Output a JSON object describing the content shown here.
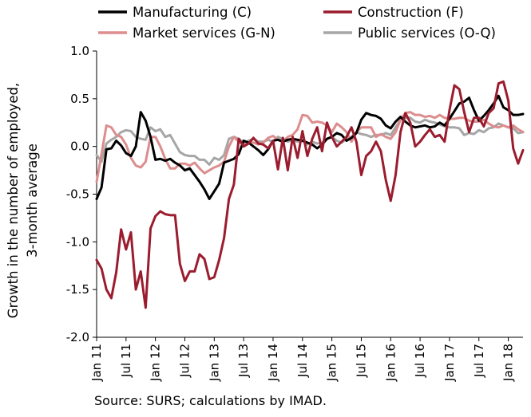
{
  "chart_data": {
    "type": "line",
    "ylabel": [
      "Growth in the number of employed,",
      "3-month average"
    ],
    "xlabel": "",
    "ylim": [
      -2.0,
      1.0
    ],
    "yticks": [
      1.0,
      0.5,
      0.0,
      -0.5,
      -1.0,
      -1.5,
      -2.0
    ],
    "ytick_labels": [
      "1.0",
      "0.5",
      "0.0",
      "-0.5",
      "-1.0",
      "-1.5",
      "-2.0"
    ],
    "x_start": "Jan 11",
    "x_end": "Jul 18",
    "xticks": [
      {
        "label": "Jan 11",
        "month": 0
      },
      {
        "label": "Jul 11",
        "month": 6
      },
      {
        "label": "Jan 12",
        "month": 12
      },
      {
        "label": "Jul 12",
        "month": 18
      },
      {
        "label": "Jan 13",
        "month": 24
      },
      {
        "label": "Jul 13",
        "month": 30
      },
      {
        "label": "Jan 14",
        "month": 36
      },
      {
        "label": "Jul 14",
        "month": 42
      },
      {
        "label": "Jan 15",
        "month": 48
      },
      {
        "label": "Jul 15",
        "month": 54
      },
      {
        "label": "Jan 16",
        "month": 60
      },
      {
        "label": "Jul 16",
        "month": 66
      },
      {
        "label": "Jan 17",
        "month": 72
      },
      {
        "label": "Jul 17",
        "month": 78
      },
      {
        "label": "Jan 18",
        "month": 84
      }
    ],
    "legend_placement": "top",
    "grid": false,
    "series": [
      {
        "name": "Manufacturing (C)",
        "color": "#000000",
        "values": [
          -0.55,
          -0.43,
          -0.03,
          -0.02,
          0.06,
          0.01,
          -0.07,
          -0.1,
          0.0,
          0.36,
          0.27,
          0.1,
          -0.14,
          -0.13,
          -0.15,
          -0.13,
          -0.17,
          -0.2,
          -0.25,
          -0.23,
          -0.3,
          -0.37,
          -0.45,
          -0.55,
          -0.47,
          -0.39,
          -0.17,
          -0.15,
          -0.13,
          -0.08,
          0.06,
          0.04,
          0.0,
          -0.04,
          -0.09,
          -0.03,
          0.06,
          0.07,
          0.05,
          0.07,
          0.08,
          0.07,
          0.06,
          0.04,
          0.02,
          -0.02,
          0.02,
          0.08,
          0.1,
          0.14,
          0.12,
          0.06,
          0.09,
          0.14,
          0.28,
          0.35,
          0.33,
          0.32,
          0.29,
          0.22,
          0.19,
          0.26,
          0.31,
          0.26,
          0.22,
          0.2,
          0.21,
          0.22,
          0.2,
          0.21,
          0.25,
          0.22,
          0.29,
          0.37,
          0.45,
          0.47,
          0.51,
          0.38,
          0.27,
          0.32,
          0.38,
          0.45,
          0.53,
          0.41,
          0.38,
          0.33,
          0.33,
          0.34
        ]
      },
      {
        "name": "Construction (F)",
        "color": "#9b1c2e",
        "values": [
          -1.19,
          -1.28,
          -1.5,
          -1.59,
          -1.32,
          -0.87,
          -1.08,
          -0.9,
          -1.5,
          -1.31,
          -1.69,
          -0.86,
          -0.73,
          -0.68,
          -0.71,
          -0.72,
          -0.72,
          -1.23,
          -1.41,
          -1.31,
          -1.31,
          -1.13,
          -1.18,
          -1.39,
          -1.37,
          -1.19,
          -0.96,
          -0.55,
          -0.4,
          0.08,
          0.0,
          0.03,
          0.09,
          0.03,
          0.02,
          -0.02,
          0.06,
          -0.24,
          0.09,
          -0.25,
          0.1,
          -0.12,
          0.16,
          -0.1,
          0.08,
          0.2,
          -0.05,
          0.25,
          0.1,
          0.0,
          0.05,
          0.1,
          0.2,
          0.05,
          -0.3,
          -0.1,
          -0.05,
          0.05,
          -0.05,
          -0.35,
          -0.57,
          -0.3,
          0.15,
          0.35,
          0.25,
          0.0,
          0.05,
          0.12,
          0.18,
          0.1,
          0.12,
          0.05,
          0.38,
          0.64,
          0.6,
          0.36,
          0.15,
          0.3,
          0.3,
          0.21,
          0.35,
          0.4,
          0.66,
          0.68,
          0.48,
          -0.02,
          -0.18,
          -0.04
        ]
      },
      {
        "name": "Market services (G-N)",
        "color": "#dd8d8d",
        "values": [
          -0.37,
          -0.08,
          0.22,
          0.2,
          0.12,
          0.1,
          0.02,
          -0.12,
          -0.2,
          -0.22,
          -0.16,
          0.1,
          0.1,
          0.0,
          -0.13,
          -0.23,
          -0.23,
          -0.18,
          -0.18,
          -0.2,
          -0.17,
          -0.23,
          -0.28,
          -0.25,
          -0.22,
          -0.2,
          -0.16,
          0.0,
          0.1,
          0.05,
          0.02,
          0.04,
          0.04,
          0.02,
          0.04,
          0.09,
          0.11,
          0.07,
          0.05,
          0.1,
          0.12,
          0.18,
          0.33,
          0.32,
          0.25,
          0.26,
          0.25,
          0.22,
          0.15,
          0.24,
          0.2,
          0.15,
          0.05,
          0.15,
          0.2,
          0.2,
          0.2,
          0.1,
          0.13,
          0.1,
          0.08,
          0.15,
          0.28,
          0.35,
          0.36,
          0.33,
          0.33,
          0.31,
          0.32,
          0.3,
          0.33,
          0.3,
          0.29,
          0.29,
          0.3,
          0.3,
          0.27,
          0.26,
          0.26,
          0.28,
          0.24,
          0.21,
          0.2,
          0.22,
          0.2,
          0.22,
          0.18,
          0.15
        ]
      },
      {
        "name": "Public services (O-Q)",
        "color": "#a6a6a6",
        "values": [
          -0.09,
          -0.16,
          0.03,
          0.07,
          0.1,
          0.15,
          0.17,
          0.16,
          0.1,
          0.08,
          0.07,
          0.2,
          0.16,
          0.18,
          0.1,
          0.12,
          0.03,
          -0.06,
          -0.09,
          -0.1,
          -0.1,
          -0.14,
          -0.14,
          -0.19,
          -0.12,
          -0.14,
          -0.09,
          0.08,
          0.1,
          0.08,
          0.04,
          0.06,
          0.08,
          0.05,
          0.05,
          0.07,
          0.05,
          0.1,
          0.08,
          0.05,
          0.07,
          0.05,
          0.06,
          0.02,
          0.05,
          0.03,
          0.04,
          0.08,
          0.1,
          0.06,
          0.04,
          0.08,
          0.1,
          0.15,
          0.13,
          0.12,
          0.1,
          0.12,
          0.12,
          0.14,
          0.12,
          0.2,
          0.28,
          0.3,
          0.3,
          0.26,
          0.25,
          0.28,
          0.26,
          0.25,
          0.23,
          0.21,
          0.2,
          0.2,
          0.19,
          0.12,
          0.14,
          0.13,
          0.17,
          0.15,
          0.19,
          0.2,
          0.24,
          0.22,
          0.2,
          0.19,
          0.14,
          0.15
        ]
      }
    ]
  },
  "source": "Source: SURS; calculations by IMAD."
}
